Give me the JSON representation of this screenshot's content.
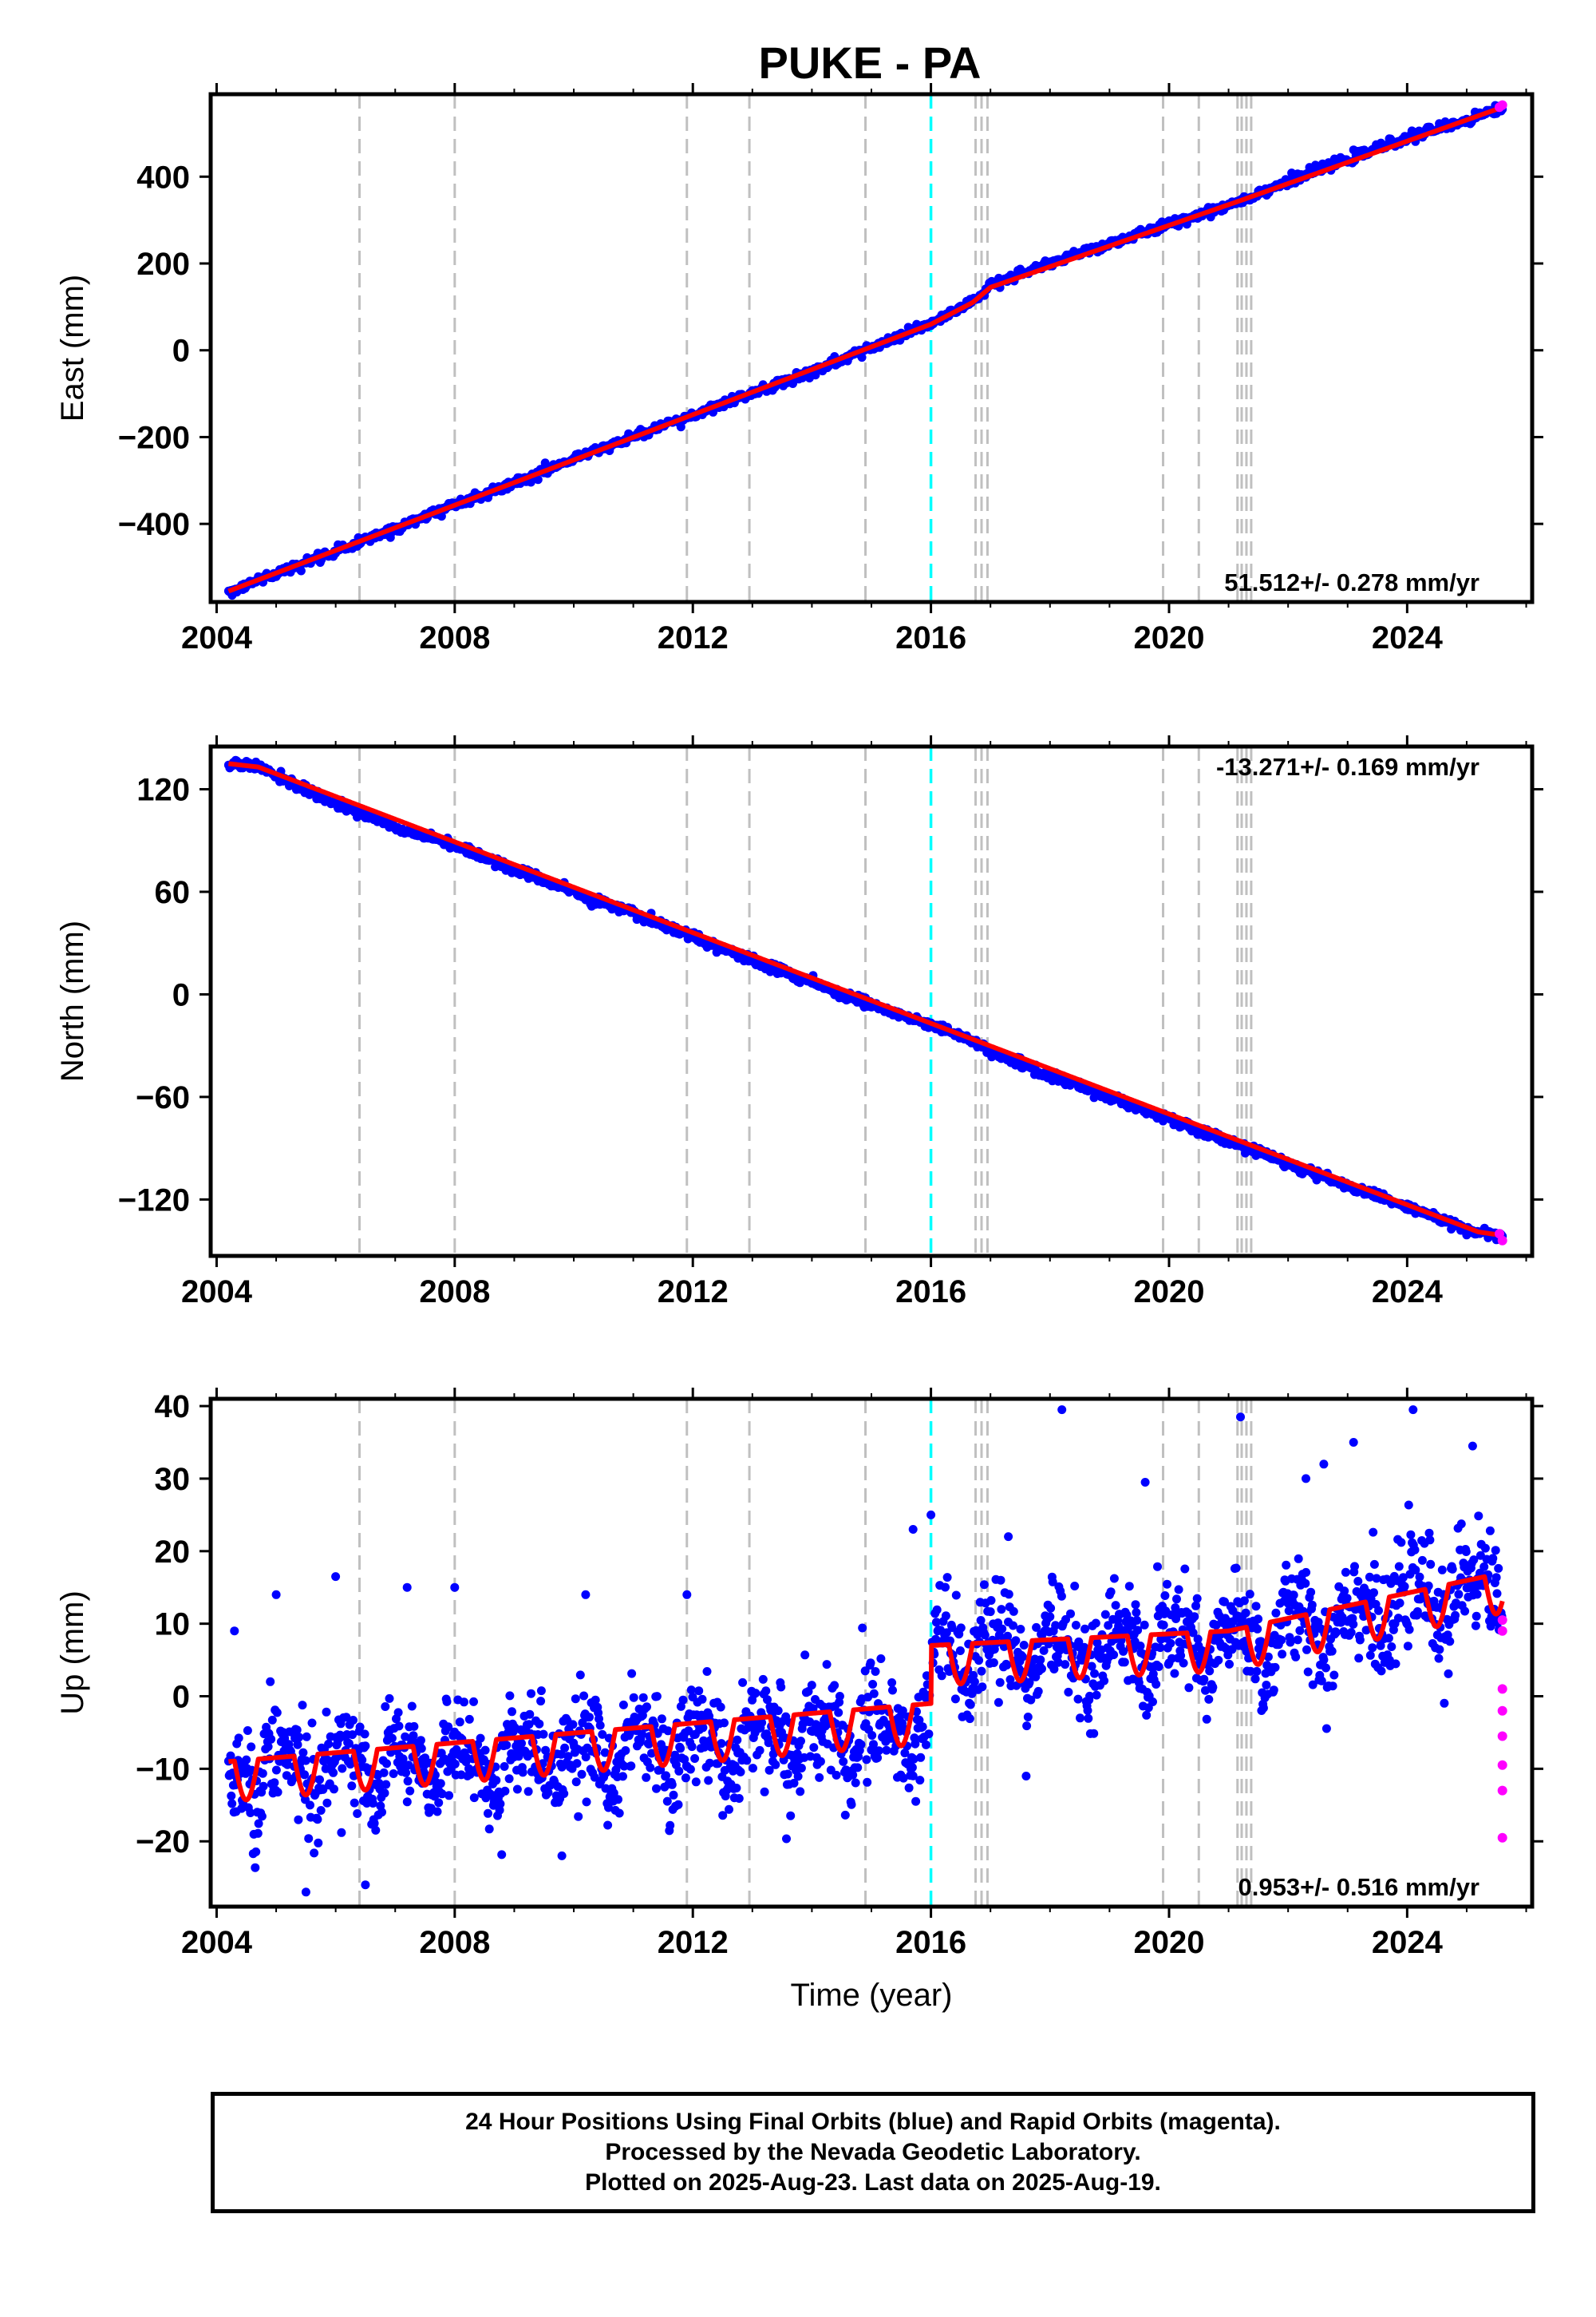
{
  "title": "PUKE - PA",
  "caption": [
    "24 Hour Positions Using Final Orbits (blue) and Rapid Orbits (magenta).",
    "Processed by the Nevada Geodetic Laboratory.",
    "Plotted on 2025-Aug-23. Last data on 2025-Aug-19."
  ],
  "colors": {
    "final": "#0000ff",
    "rapid": "#ff00ff",
    "model": "#ff0000",
    "equipment_change": "#c0c0c0",
    "earthquake": "#00ffff"
  },
  "chart_data": [
    {
      "type": "scatter",
      "title": "PUKE - PA",
      "ylabel": "East (mm)",
      "xlabel": "",
      "xlim": [
        2003.9,
        2026.1
      ],
      "ylim": [
        -580,
        590
      ],
      "xticks": [
        2004,
        2008,
        2012,
        2016,
        2020,
        2024
      ],
      "yticks": [
        -400,
        -200,
        0,
        200,
        400
      ],
      "rate_label": "51.512+/- 0.278 mm/yr",
      "rate_position": "bottom-right",
      "series": [
        {
          "name": "Final Orbits (blue)",
          "color": "#0000ff",
          "x": [
            2004.2,
            2005,
            2006,
            2007,
            2008,
            2009,
            2010,
            2011,
            2012,
            2013,
            2014,
            2015,
            2016,
            2016.8,
            2017,
            2018,
            2019,
            2020,
            2021,
            2021.3,
            2022,
            2023,
            2024,
            2025,
            2025.6
          ],
          "y": [
            -555,
            -515,
            -465,
            -410,
            -355,
            -305,
            -250,
            -200,
            -150,
            -100,
            -50,
            5,
            60,
            120,
            150,
            200,
            245,
            290,
            335,
            350,
            390,
            440,
            490,
            530,
            560
          ]
        },
        {
          "name": "Rapid Orbits (magenta)",
          "color": "#ff00ff",
          "x": [
            2025.55,
            2025.6
          ],
          "y": [
            560,
            565
          ]
        }
      ],
      "model": {
        "x": [
          2004.2,
          2016,
          2016.7,
          2017,
          2021.2,
          2025.6
        ],
        "y": [
          -555,
          60,
          110,
          145,
          345,
          560
        ]
      },
      "equipment_changes": [
        2006.4,
        2008.0,
        2011.9,
        2012.95,
        2014.9,
        2016.75,
        2016.85,
        2016.95,
        2019.9,
        2020.5,
        2021.15,
        2021.22,
        2021.3,
        2021.38
      ],
      "earthquakes": [
        2016.0
      ],
      "grid": false
    },
    {
      "type": "scatter",
      "ylabel": "North (mm)",
      "xlabel": "",
      "xlim": [
        2003.9,
        2026.1
      ],
      "ylim": [
        -153,
        145
      ],
      "xticks": [
        2004,
        2008,
        2012,
        2016,
        2020,
        2024
      ],
      "yticks": [
        -120,
        -60,
        0,
        60,
        120
      ],
      "rate_label": "-13.271+/- 0.169 mm/yr",
      "rate_position": "top-right",
      "series": [
        {
          "name": "Final Orbits (blue)",
          "color": "#0000ff",
          "x": [
            2004.2,
            2004.7,
            2006,
            2007,
            2008,
            2009,
            2010,
            2011,
            2012,
            2013,
            2014,
            2015,
            2016,
            2017,
            2018,
            2019,
            2020,
            2021,
            2022,
            2023,
            2024,
            2025,
            2025.6
          ],
          "y": [
            135,
            133,
            112,
            98,
            87,
            73,
            60,
            47,
            34,
            20,
            7,
            -6,
            -18,
            -32,
            -48,
            -60,
            -73,
            -86,
            -99,
            -112,
            -124,
            -138,
            -141
          ]
        },
        {
          "name": "Rapid Orbits (magenta)",
          "color": "#ff00ff",
          "x": [
            2025.55,
            2025.6
          ],
          "y": [
            -140,
            -144
          ]
        }
      ],
      "model": {
        "x": [
          2004.2,
          2004.7,
          2025.2,
          2025.6
        ],
        "y": [
          135,
          133,
          -139,
          -141
        ]
      },
      "equipment_changes": [
        2006.4,
        2008.0,
        2011.9,
        2012.95,
        2014.9,
        2016.75,
        2016.85,
        2016.95,
        2019.9,
        2020.5,
        2021.15,
        2021.22,
        2021.3,
        2021.38
      ],
      "earthquakes": [
        2016.0
      ],
      "grid": false
    },
    {
      "type": "scatter",
      "ylabel": "Up (mm)",
      "xlabel": "Time (year)",
      "xlim": [
        2003.9,
        2026.1
      ],
      "ylim": [
        -29,
        41
      ],
      "xticks": [
        2004,
        2008,
        2012,
        2016,
        2020,
        2024
      ],
      "yticks": [
        -20,
        -10,
        0,
        10,
        20,
        30,
        40
      ],
      "rate_label": "0.953+/- 0.516 mm/yr",
      "rate_position": "bottom-right",
      "series": [
        {
          "name": "Final Orbits (blue)",
          "color": "#0000ff",
          "trend": {
            "x": [
              2004.2,
              2016.0,
              2016.01,
              2021.0,
              2025.6
            ],
            "y": [
              -9.5,
              -3,
              7,
              8.5,
              17
            ]
          },
          "scatter_sd_mm": 3.5,
          "outliers": {
            "x": [
              2004.3,
              2005.0,
              2006.0,
              2007.2,
              2008.0,
              2010.2,
              2011.9,
              2015.7,
              2016.0,
              2017.3,
              2018.2,
              2019.6,
              2021.2,
              2022.3,
              2022.6,
              2023.1,
              2024.1,
              2025.1,
              2005.5,
              2006.5,
              2009.8,
              2017.6
            ],
            "y": [
              9,
              14,
              16.5,
              15,
              15,
              14,
              14,
              23,
              25,
              22,
              39.5,
              29.5,
              38.5,
              30,
              32,
              35,
              39.5,
              34.5,
              -27,
              -26,
              -22,
              -11
            ]
          }
        },
        {
          "name": "Rapid Orbits (magenta)",
          "color": "#ff00ff",
          "x": [
            2025.6,
            2025.6,
            2025.6,
            2025.6,
            2025.6,
            2025.6,
            2025.6,
            2025.6
          ],
          "y": [
            10.5,
            9,
            1,
            -2,
            -5.5,
            -9.5,
            -13,
            -19.5
          ]
        }
      ],
      "model": {
        "base": {
          "x": [
            2004.2,
            2016.0,
            2016.01,
            2021.0,
            2025.6
          ],
          "y": [
            -9,
            -1,
            7,
            9,
            17
          ]
        },
        "seasonal_amplitude_mm": 2.8,
        "seasonal_dip_mm": 5.5
      },
      "equipment_changes": [
        2006.4,
        2008.0,
        2011.9,
        2012.95,
        2014.9,
        2016.75,
        2016.85,
        2016.95,
        2019.9,
        2020.5,
        2021.15,
        2021.22,
        2021.3,
        2021.38
      ],
      "earthquakes": [
        2016.0
      ],
      "grid": false
    }
  ]
}
